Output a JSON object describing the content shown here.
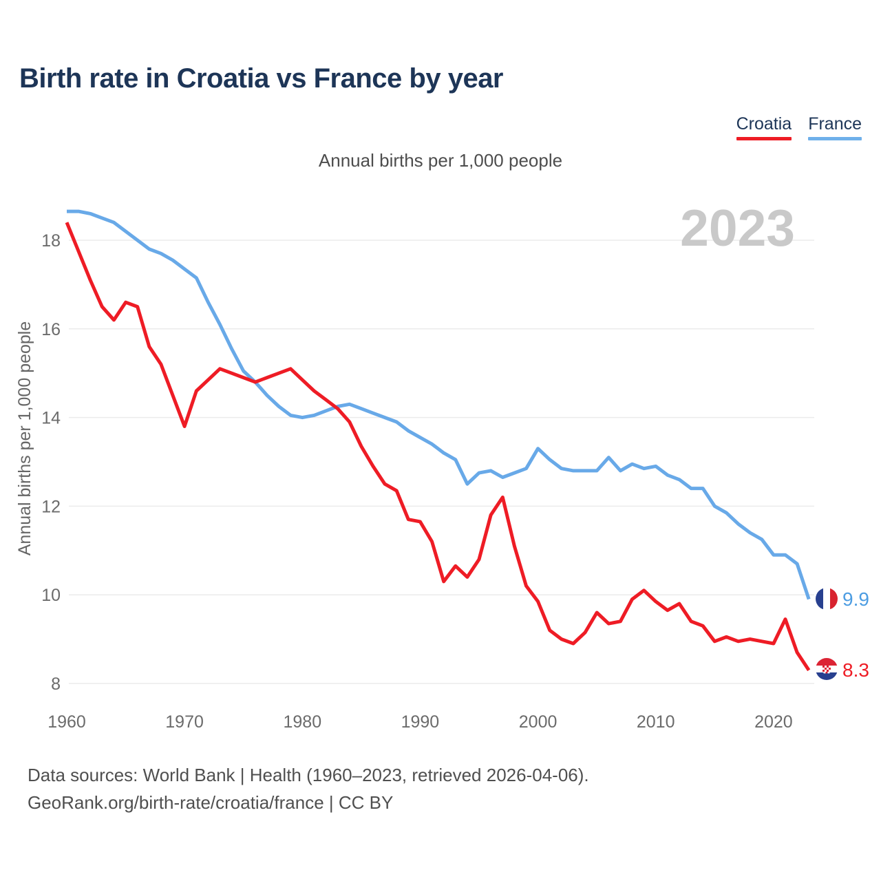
{
  "header": {
    "title": "Birth rate in Croatia vs France by year",
    "subtitle": "Annual births per 1,000 people"
  },
  "watermark": "2023",
  "legend": {
    "items": [
      {
        "label": "Croatia",
        "color": "#ee1c25"
      },
      {
        "label": "France",
        "color": "#6fb0ea"
      }
    ]
  },
  "y_axis": {
    "title": "Annual births per 1,000 people",
    "ticks": [
      8,
      10,
      12,
      14,
      16,
      18
    ]
  },
  "x_axis": {
    "ticks": [
      1960,
      1970,
      1980,
      1990,
      2000,
      2010,
      2020
    ]
  },
  "annotations": {
    "france_end_value": "9.9",
    "croatia_end_value": "8.3",
    "france_flag_icon": "france-flag",
    "croatia_flag_icon": "croatia-flag"
  },
  "footer": {
    "line1": "Data sources: World Bank | Health (1960–2023, retrieved 2026-04-06).",
    "line2": "GeoRank.org/birth-rate/croatia/france | CC BY"
  },
  "chart_data": {
    "type": "line",
    "title": "Birth rate in Croatia vs France by year",
    "xlabel": "",
    "ylabel": "Annual births per 1,000 people",
    "ylim": [
      7.4,
      19.1
    ],
    "xlim": [
      1960,
      2023
    ],
    "grid": "horizontal",
    "legend_position": "top-right",
    "years": [
      1960,
      1961,
      1962,
      1963,
      1964,
      1965,
      1966,
      1967,
      1968,
      1969,
      1970,
      1971,
      1972,
      1973,
      1974,
      1975,
      1976,
      1977,
      1978,
      1979,
      1980,
      1981,
      1982,
      1983,
      1984,
      1985,
      1986,
      1987,
      1988,
      1989,
      1990,
      1991,
      1992,
      1993,
      1994,
      1995,
      1996,
      1997,
      1998,
      1999,
      2000,
      2001,
      2002,
      2003,
      2004,
      2005,
      2006,
      2007,
      2008,
      2009,
      2010,
      2011,
      2012,
      2013,
      2014,
      2015,
      2016,
      2017,
      2018,
      2019,
      2020,
      2021,
      2022,
      2023
    ],
    "series": [
      {
        "name": "Croatia",
        "color": "#ee1c25",
        "values": [
          18.4,
          17.75,
          17.1,
          16.5,
          16.2,
          16.6,
          16.5,
          15.6,
          15.2,
          14.5,
          13.8,
          14.6,
          14.85,
          15.1,
          15.0,
          14.9,
          14.8,
          14.9,
          15.0,
          15.1,
          14.85,
          14.6,
          14.4,
          14.2,
          13.9,
          13.35,
          12.9,
          12.5,
          12.35,
          11.7,
          11.65,
          11.2,
          10.3,
          10.65,
          10.4,
          10.8,
          11.8,
          12.2,
          11.1,
          10.2,
          9.85,
          9.2,
          9.0,
          8.9,
          9.15,
          9.6,
          9.35,
          9.4,
          9.9,
          10.1,
          9.85,
          9.65,
          9.8,
          9.4,
          9.3,
          8.95,
          9.05,
          8.95,
          9.0,
          8.95,
          8.9,
          9.45,
          8.7,
          8.3
        ]
      },
      {
        "name": "France",
        "color": "#68a9e8",
        "values": [
          18.65,
          18.65,
          18.6,
          18.5,
          18.4,
          18.2,
          18.0,
          17.8,
          17.7,
          17.55,
          17.35,
          17.15,
          16.6,
          16.1,
          15.55,
          15.05,
          14.8,
          14.5,
          14.25,
          14.05,
          14.0,
          14.05,
          14.15,
          14.25,
          14.3,
          14.2,
          14.1,
          14.0,
          13.9,
          13.7,
          13.55,
          13.4,
          13.2,
          13.05,
          12.5,
          12.75,
          12.8,
          12.65,
          12.75,
          12.85,
          13.3,
          13.05,
          12.85,
          12.8,
          12.8,
          12.8,
          13.1,
          12.8,
          12.95,
          12.85,
          12.9,
          12.7,
          12.6,
          12.4,
          12.4,
          12.0,
          11.85,
          11.6,
          11.4,
          11.25,
          10.9,
          10.9,
          10.7,
          9.9
        ]
      }
    ]
  }
}
